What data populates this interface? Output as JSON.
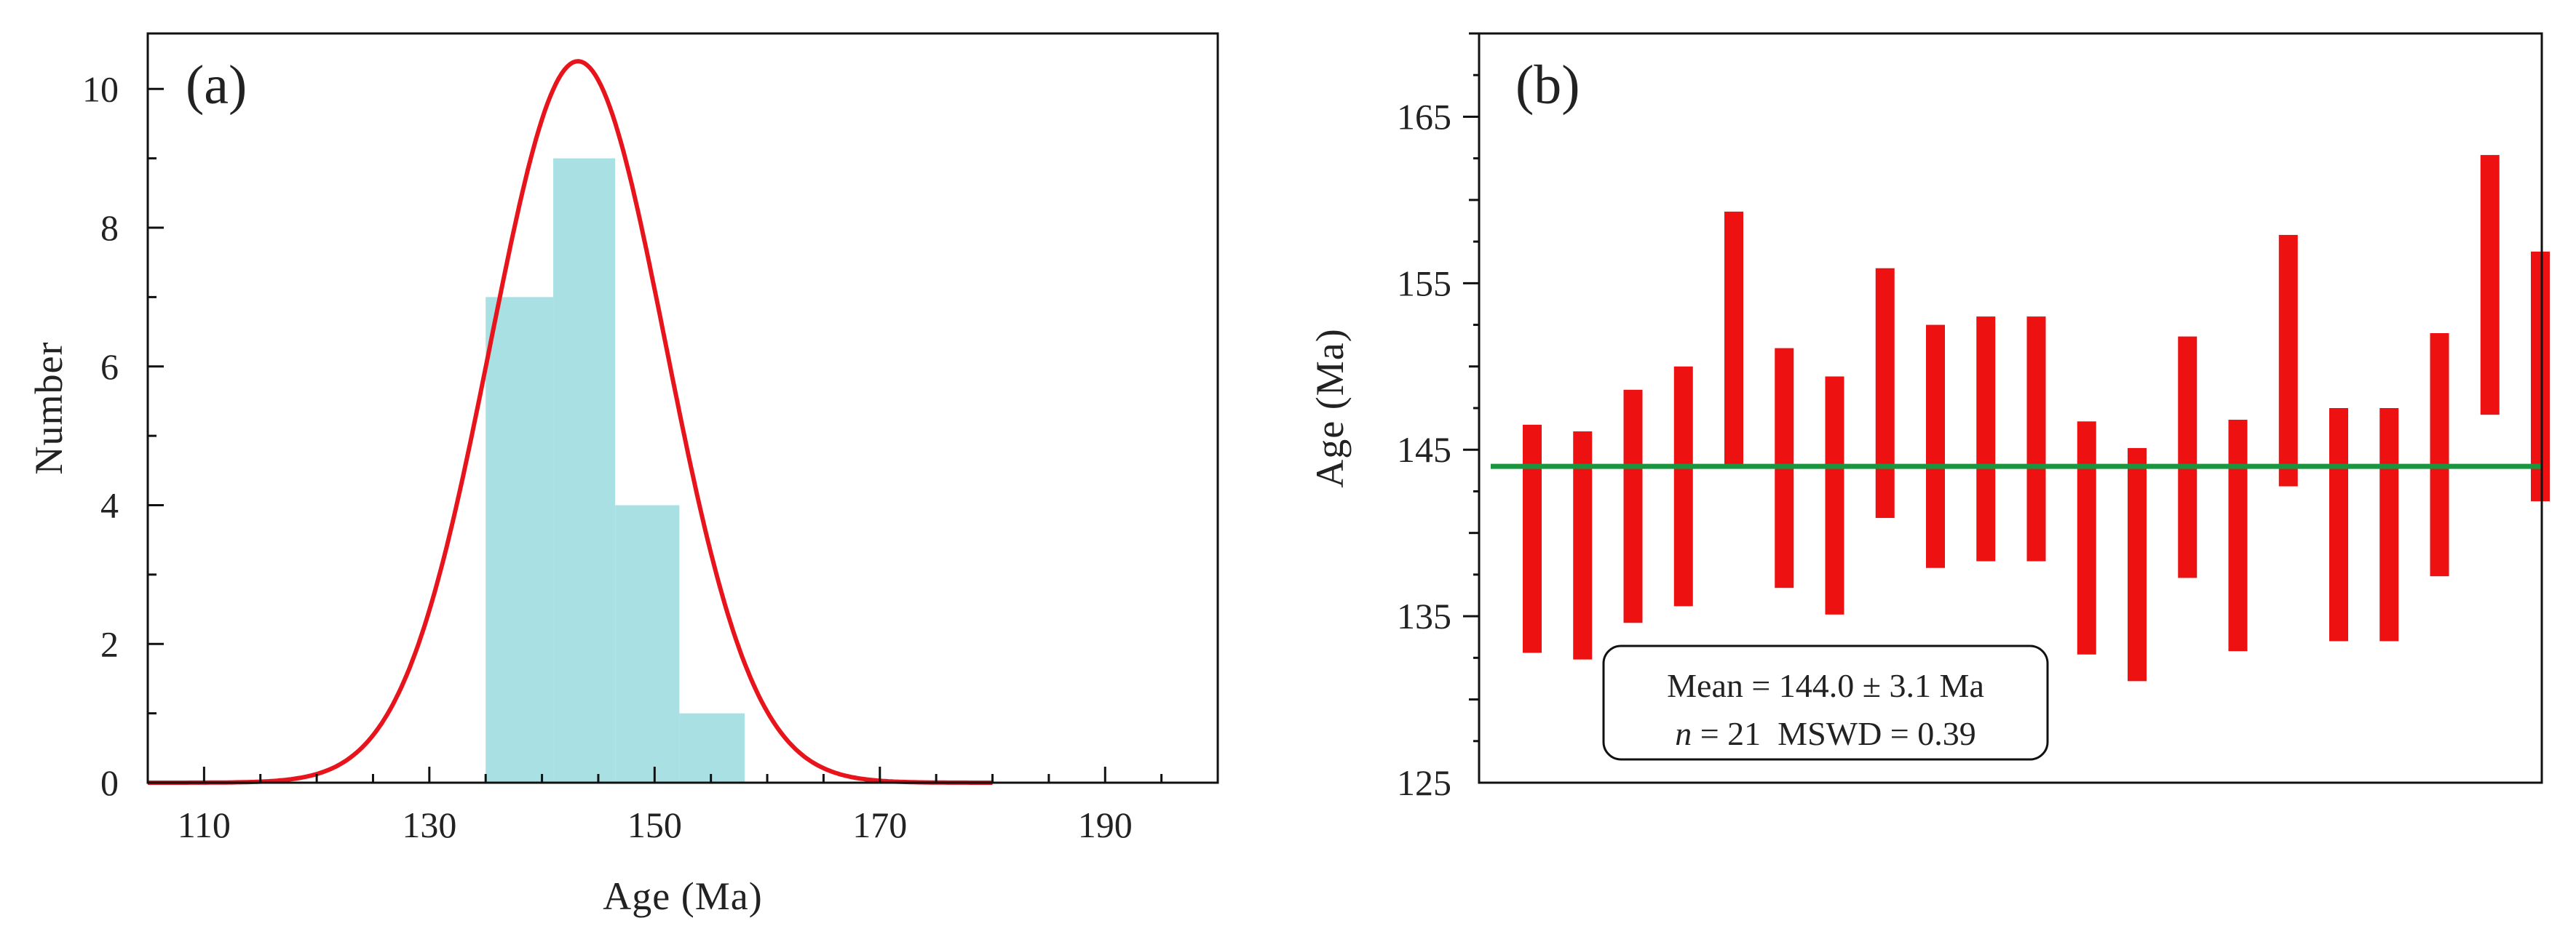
{
  "chart_data": [
    {
      "panel": "(a)",
      "type": "bar",
      "subtype": "histogram with probability density curve",
      "xlabel": "Age (Ma)",
      "ylabel": "Number",
      "xlim": [
        105,
        200
      ],
      "ylim": [
        0,
        10.8
      ],
      "xticks": [
        110,
        130,
        150,
        170,
        190
      ],
      "yticks": [
        0,
        2,
        4,
        6,
        8,
        10
      ],
      "bins": [
        {
          "x0": 135,
          "x1": 141,
          "count": 7
        },
        {
          "x0": 141,
          "x1": 146.5,
          "count": 9
        },
        {
          "x0": 146.5,
          "x1": 152.2,
          "count": 4
        },
        {
          "x0": 152.2,
          "x1": 158,
          "count": 1
        }
      ],
      "curve": {
        "name": "probability density",
        "mean": 143.2,
        "sd": 7.8,
        "peak": 10.4,
        "x_range": [
          105,
          180
        ]
      },
      "colors": {
        "bars": "#a8e0e4",
        "curve": "#e8141b"
      }
    },
    {
      "panel": "(b)",
      "type": "bar",
      "subtype": "weighted mean age error bars",
      "ylabel": "Age (Ma)",
      "ylim": [
        125,
        170
      ],
      "yticks": [
        125,
        135,
        145,
        155,
        165
      ],
      "bars": [
        {
          "low": 132.8,
          "high": 146.5
        },
        {
          "low": 132.4,
          "high": 146.1
        },
        {
          "low": 134.6,
          "high": 148.6
        },
        {
          "low": 135.6,
          "high": 150.0
        },
        {
          "low": 144.1,
          "high": 159.3
        },
        {
          "low": 136.7,
          "high": 151.1
        },
        {
          "low": 135.1,
          "high": 149.4
        },
        {
          "low": 140.9,
          "high": 155.9
        },
        {
          "low": 137.9,
          "high": 152.5
        },
        {
          "low": 138.3,
          "high": 153.0
        },
        {
          "low": 138.3,
          "high": 153.0
        },
        {
          "low": 132.7,
          "high": 146.7
        },
        {
          "low": 131.1,
          "high": 145.1
        },
        {
          "low": 137.3,
          "high": 151.8
        },
        {
          "low": 132.9,
          "high": 146.8
        },
        {
          "low": 142.8,
          "high": 157.9
        },
        {
          "low": 133.5,
          "high": 147.5
        },
        {
          "low": 133.5,
          "high": 147.5
        },
        {
          "low": 137.4,
          "high": 152.0
        },
        {
          "low": 147.1,
          "high": 162.7
        },
        {
          "low": 141.9,
          "high": 156.9
        }
      ],
      "mean_age": 144.0,
      "annotation": {
        "line1": "Mean = 144.0 ± 3.1 Ma",
        "n_symbol": "n",
        "line2_rest": " = 21  MSWD = 0.39"
      },
      "colors": {
        "bars": "#ee1111",
        "mean_line": "#1a9641"
      }
    }
  ]
}
